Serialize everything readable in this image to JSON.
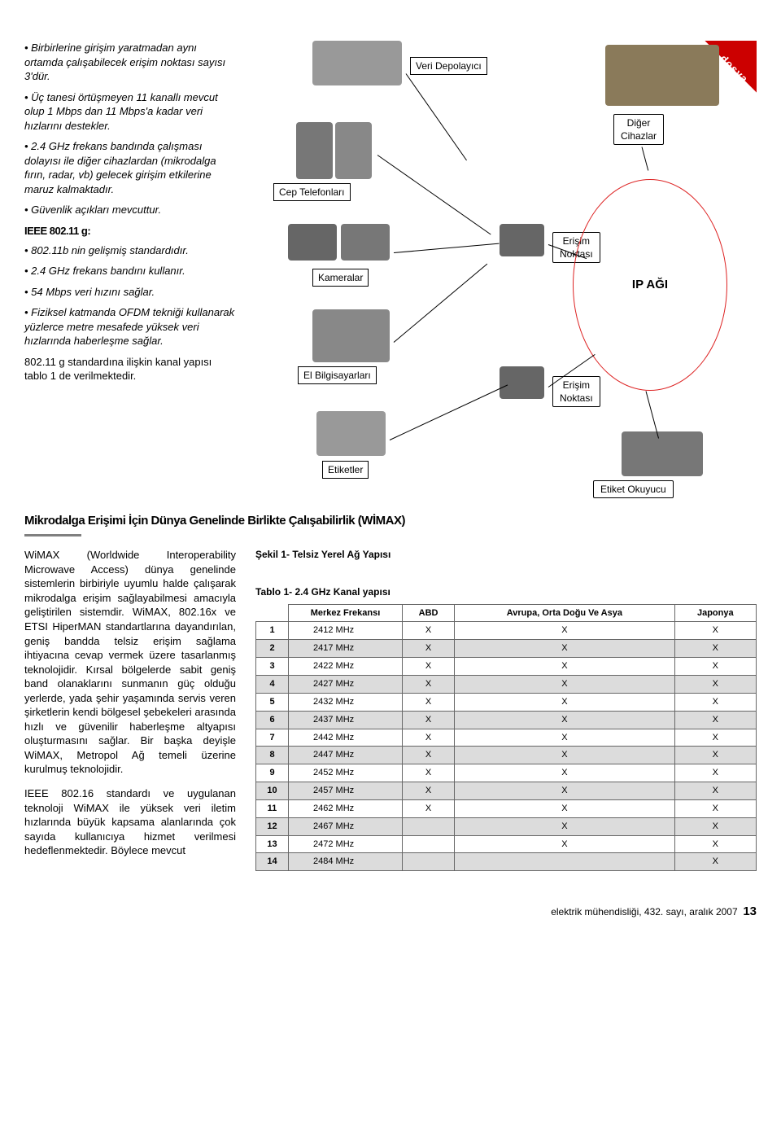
{
  "corner_tag": "dosya",
  "left_col": {
    "b1": "Birbirlerine girişim yaratmadan aynı ortamda çalışabilecek erişim noktası sayısı 3'dür.",
    "b2": "Üç tanesi örtüşmeyen 11 kanallı mevcut olup 1 Mbps dan 11 Mbps'a kadar veri hızlarını destekler.",
    "b3": "2.4 GHz frekans bandında çalışması dolayısı ile diğer cihazlardan (mikrodalga fırın, radar, vb) gelecek girişim etkilerine maruz kalmaktadır.",
    "b4": "Güvenlik açıkları mevcuttur.",
    "sub_g": "IEEE 802.11 g:",
    "g1": "802.11b nin gelişmiş standardıdır.",
    "g2": "2.4 GHz frekans bandını kullanır.",
    "g3": "54 Mbps veri hızını sağlar.",
    "g4": "Fiziksel katmanda OFDM tekniği kullanarak yüzlerce metre mesafede yüksek veri hızlarında haberleşme sağlar.",
    "g_end": "802.11 g standardına ilişkin kanal yapısı tablo 1 de verilmektedir."
  },
  "section_title": "Mikrodalga Erişimi İçin Dünya Genelinde Birlikte Çalışabilirlik (WİMAX)",
  "lower_left": {
    "p1": "WiMAX (Worldwide Interoperability Microwave Access) dünya genelinde sistemlerin birbiriyle uyumlu halde çalışarak mikrodalga erişim sağlayabilmesi amacıyla geliştirilen sistemdir. WiMAX, 802.16x ve ETSI HiperMAN standartlarına dayandırılan, geniş bandda telsiz erişim sağlama ihtiyacına cevap vermek üzere tasarlanmış teknolojidir. Kırsal bölgelerde sabit geniş band olanaklarını sunmanın güç olduğu yerlerde, yada şehir yaşamında servis veren şirketlerin kendi bölgesel şebekeleri arasında hızlı ve güvenilir haberleşme altyapısı oluşturmasını sağlar. Bir başka deyişle WiMAX, Metropol Ağ temeli üzerine kurulmuş teknolojidir.",
    "p2": "IEEE 802.16 standardı ve uygulanan teknoloji WiMAX ile yüksek veri iletim hızlarında büyük kapsama alanlarında çok sayıda kullanıcıya hizmet verilmesi hedeflenmektedir. Böylece mevcut"
  },
  "fig_caption": "Şekil 1-  Telsiz Yerel Ağ Yapısı",
  "table_caption": "Tablo 1- 2.4 GHz Kanal yapısı",
  "diagram": {
    "veri_depo": "Veri Depolayıcı",
    "cep_tel": "Cep Telefonları",
    "kameralar": "Kameralar",
    "el_bilg": "El Bilgisayarları",
    "etiketler": "Etiketler",
    "diger": "Diğer\nCihazlar",
    "erisim1": "Erişim\nNoktası",
    "erisim2": "Erişim\nNoktası",
    "etiket_ok": "Etiket Okuyucu",
    "ip": "IP AĞI"
  },
  "table": {
    "headers": [
      "",
      "Merkez Frekansı",
      "ABD",
      "Avrupa, Orta Doğu Ve Asya",
      "Japonya"
    ],
    "rows": [
      {
        "n": "1",
        "f": "2412 MHz",
        "a": "X",
        "b": "X",
        "c": "X",
        "shade": false
      },
      {
        "n": "2",
        "f": "2417 MHz",
        "a": "X",
        "b": "X",
        "c": "X",
        "shade": true
      },
      {
        "n": "3",
        "f": "2422 MHz",
        "a": "X",
        "b": "X",
        "c": "X",
        "shade": false
      },
      {
        "n": "4",
        "f": "2427 MHz",
        "a": "X",
        "b": "X",
        "c": "X",
        "shade": true
      },
      {
        "n": "5",
        "f": "2432 MHz",
        "a": "X",
        "b": "X",
        "c": "X",
        "shade": false
      },
      {
        "n": "6",
        "f": "2437 MHz",
        "a": "X",
        "b": "X",
        "c": "X",
        "shade": true
      },
      {
        "n": "7",
        "f": "2442 MHz",
        "a": "X",
        "b": "X",
        "c": "X",
        "shade": false
      },
      {
        "n": "8",
        "f": "2447 MHz",
        "a": "X",
        "b": "X",
        "c": "X",
        "shade": true
      },
      {
        "n": "9",
        "f": "2452 MHz",
        "a": "X",
        "b": "X",
        "c": "X",
        "shade": false
      },
      {
        "n": "10",
        "f": "2457 MHz",
        "a": "X",
        "b": "X",
        "c": "X",
        "shade": true
      },
      {
        "n": "11",
        "f": "2462 MHz",
        "a": "X",
        "b": "X",
        "c": "X",
        "shade": false
      },
      {
        "n": "12",
        "f": "2467 MHz",
        "a": "",
        "b": "X",
        "c": "X",
        "shade": true
      },
      {
        "n": "13",
        "f": "2472 MHz",
        "a": "",
        "b": "X",
        "c": "X",
        "shade": false
      },
      {
        "n": "14",
        "f": "2484 MHz",
        "a": "",
        "b": "",
        "c": "X",
        "shade": true
      }
    ]
  },
  "footer": {
    "text": "elektrik mühendisliği, 432. sayı, aralık 2007",
    "page": "13"
  }
}
